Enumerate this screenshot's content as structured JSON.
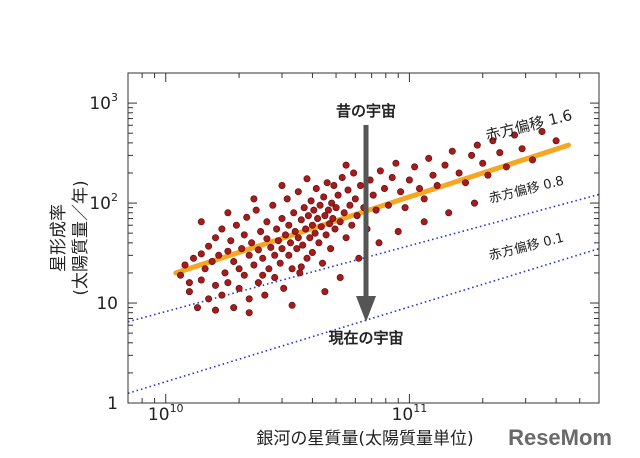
{
  "chart_data": {
    "type": "scatter",
    "xlabel": "銀河の星質量(太陽質量単位)",
    "ylabel_line1": "星形成率",
    "ylabel_line2": "(太陽質量／年)",
    "xscale": "log",
    "yscale": "log",
    "xlim": [
      7000000000,
      600000000000
    ],
    "ylim": [
      1,
      2000
    ],
    "x_ticks": [
      {
        "value": 10000000000,
        "base": "10",
        "exp": "10"
      },
      {
        "value": 100000000000,
        "base": "10",
        "exp": "11"
      }
    ],
    "y_ticks": [
      {
        "value": 1,
        "label": "1"
      },
      {
        "value": 10,
        "label": "10"
      },
      {
        "value": 100,
        "base": "10",
        "exp": "2"
      },
      {
        "value": 1000,
        "base": "10",
        "exp": "3"
      }
    ],
    "grid": false,
    "annotations": {
      "past_universe": "昔の宇宙",
      "present_universe": "現在の宇宙"
    },
    "series": [
      {
        "name": "赤方偏移 1.6",
        "kind": "fit-line",
        "color": "#f5a623",
        "label_color": "#f0a030",
        "x": [
          11000000000,
          450000000000
        ],
        "y": [
          20,
          380
        ]
      },
      {
        "name": "赤方偏移 0.8",
        "kind": "dotted-line",
        "color": "#2233cc",
        "x": [
          7000000000,
          600000000000
        ],
        "y": [
          6.5,
          122
        ]
      },
      {
        "name": "赤方偏移 0.1",
        "kind": "dotted-line",
        "color": "#2233cc",
        "x": [
          7000000000,
          600000000000
        ],
        "y": [
          1.25,
          35
        ]
      },
      {
        "kind": "points",
        "color": "#a61b1b",
        "points": [
          [
            11500000000.0,
            19
          ],
          [
            12000000000.0,
            24
          ],
          [
            12500000000.0,
            13
          ],
          [
            13000000000.0,
            28
          ],
          [
            13500000000.0,
            9
          ],
          [
            14000000000.0,
            31
          ],
          [
            14000000000.0,
            17
          ],
          [
            14500000000.0,
            22
          ],
          [
            15000000000.0,
            11
          ],
          [
            15000000000.0,
            37
          ],
          [
            15500000000.0,
            26
          ],
          [
            16000000000.0,
            45
          ],
          [
            16000000000.0,
            15
          ],
          [
            16500000000.0,
            30
          ],
          [
            17000000000.0,
            12
          ],
          [
            17000000000.0,
            55
          ],
          [
            17500000000.0,
            20
          ],
          [
            18000000000.0,
            33
          ],
          [
            18000000000.0,
            16
          ],
          [
            18500000000.0,
            42
          ],
          [
            19000000000.0,
            9
          ],
          [
            19000000000.0,
            26
          ],
          [
            19500000000.0,
            60
          ],
          [
            20000000000.0,
            22
          ],
          [
            20000000000.0,
            14
          ],
          [
            20500000000.0,
            35
          ],
          [
            21000000000.0,
            48
          ],
          [
            21000000000.0,
            19
          ],
          [
            21500000000.0,
            72
          ],
          [
            22000000000.0,
            30
          ],
          [
            22000000000.0,
            11
          ],
          [
            22500000000.0,
            40
          ],
          [
            23000000000.0,
            24
          ],
          [
            23500000000.0,
            85
          ],
          [
            24000000000.0,
            34
          ],
          [
            24000000000.0,
            16
          ],
          [
            24500000000.0,
            52
          ],
          [
            25000000000.0,
            28
          ],
          [
            25500000000.0,
            12
          ],
          [
            26000000000.0,
            44
          ],
          [
            26000000000.0,
            65
          ],
          [
            26500000000.0,
            22
          ],
          [
            27000000000.0,
            36
          ],
          [
            27500000000.0,
            95
          ],
          [
            28000000000.0,
            30
          ],
          [
            28000000000.0,
            18
          ],
          [
            28500000000.0,
            55
          ],
          [
            29000000000.0,
            42
          ],
          [
            29500000000.0,
            25
          ],
          [
            30000000000.0,
            70
          ],
          [
            30000000000.0,
            35
          ],
          [
            30500000000.0,
            14
          ],
          [
            31000000000.0,
            48
          ],
          [
            31500000000.0,
            110
          ],
          [
            32000000000.0,
            30
          ],
          [
            32000000000.0,
            60
          ],
          [
            32500000000.0,
            40
          ],
          [
            33000000000.0,
            22
          ],
          [
            33500000000.0,
            80
          ],
          [
            34000000000.0,
            52
          ],
          [
            34500000000.0,
            35
          ],
          [
            35000000000.0,
            130
          ],
          [
            35000000000.0,
            45
          ],
          [
            35500000000.0,
            20
          ],
          [
            36000000000.0,
            68
          ],
          [
            36500000000.0,
            38
          ],
          [
            37000000000.0,
            90
          ],
          [
            37500000000.0,
            55
          ],
          [
            38000000000.0,
            28
          ],
          [
            38500000000.0,
            75
          ],
          [
            39000000000.0,
            45
          ],
          [
            39500000000.0,
            105
          ],
          [
            40000000000.0,
            60
          ],
          [
            40000000000.0,
            32
          ],
          [
            40500000000.0,
            85
          ],
          [
            41000000000.0,
            50
          ],
          [
            41500000000.0,
            140
          ],
          [
            42000000000.0,
            70
          ],
          [
            42500000000.0,
            40
          ],
          [
            43000000000.0,
            95
          ],
          [
            43500000000.0,
            58
          ],
          [
            44000000000.0,
            25
          ],
          [
            44500000000.0,
            115
          ],
          [
            45000000000.0,
            75
          ],
          [
            45500000000.0,
            48
          ],
          [
            46000000000.0,
            160
          ],
          [
            46500000000.0,
            85
          ],
          [
            47000000000.0,
            62
          ],
          [
            47500000000.0,
            35
          ],
          [
            48000000000.0,
            100
          ],
          [
            48500000000.0,
            70
          ],
          [
            49000000000.0,
            150
          ],
          [
            49500000000.0,
            55
          ],
          [
            50000000000.0,
            90
          ],
          [
            51000000000.0,
            120
          ],
          [
            52000000000.0,
            65
          ],
          [
            53000000000.0,
            180
          ],
          [
            54000000000.0,
            80
          ],
          [
            55000000000.0,
            45
          ],
          [
            56000000000.0,
            135
          ],
          [
            57000000000.0,
            95
          ],
          [
            58000000000.0,
            60
          ],
          [
            59000000000.0,
            200
          ],
          [
            60000000000.0,
            110
          ],
          [
            61000000000.0,
            75
          ],
          [
            63000000000.0,
            150
          ],
          [
            65000000000.0,
            90
          ],
          [
            67000000000.0,
            55
          ],
          [
            69000000000.0,
            170
          ],
          [
            71000000000.0,
            120
          ],
          [
            73000000000.0,
            85
          ],
          [
            76000000000.0,
            210
          ],
          [
            79000000000.0,
            140
          ],
          [
            82000000000.0,
            95
          ],
          [
            85000000000.0,
            180
          ],
          [
            88000000000.0,
            250
          ],
          [
            92000000000.0,
            130
          ],
          [
            96000000000.0,
            90
          ],
          [
            100000000000.0,
            170
          ],
          [
            105000000000.0,
            230
          ],
          [
            110000000000.0,
            140
          ],
          [
            115000000000.0,
            110
          ],
          [
            120000000000.0,
            280
          ],
          [
            125000000000.0,
            190
          ],
          [
            130000000000.0,
            150
          ],
          [
            140000000000.0,
            240
          ],
          [
            150000000000.0,
            330
          ],
          [
            160000000000.0,
            200
          ],
          [
            170000000000.0,
            160
          ],
          [
            180000000000.0,
            300
          ],
          [
            190000000000.0,
            380
          ],
          [
            200000000000.0,
            250
          ],
          [
            210000000000.0,
            190
          ],
          [
            220000000000.0,
            420
          ],
          [
            235000000000.0,
            320
          ],
          [
            250000000000.0,
            230
          ],
          [
            270000000000.0,
            480
          ],
          [
            290000000000.0,
            350
          ],
          [
            320000000000.0,
            270
          ],
          [
            350000000000.0,
            520
          ],
          [
            400000000000.0,
            420
          ],
          [
            12500000000.0,
            16
          ],
          [
            16000000000.0,
            8.5
          ],
          [
            22000000000.0,
            8
          ],
          [
            33000000000.0,
            9.5
          ],
          [
            45000000000.0,
            13
          ],
          [
            25000000000.0,
            19
          ],
          [
            36000000000.0,
            23
          ],
          [
            52000000000.0,
            18
          ],
          [
            62000000000.0,
            28
          ],
          [
            75000000000.0,
            40
          ],
          [
            90000000000.0,
            52
          ],
          [
            115000000000.0,
            65
          ],
          [
            145000000000.0,
            80
          ],
          [
            185000000000.0,
            100
          ],
          [
            14000000000.0,
            65
          ],
          [
            18000000000.0,
            80
          ],
          [
            23000000000.0,
            110
          ],
          [
            30000000000.0,
            150
          ],
          [
            38000000000.0,
            175
          ],
          [
            55000000000.0,
            240
          ]
        ]
      }
    ]
  },
  "watermark": "ReseMom"
}
